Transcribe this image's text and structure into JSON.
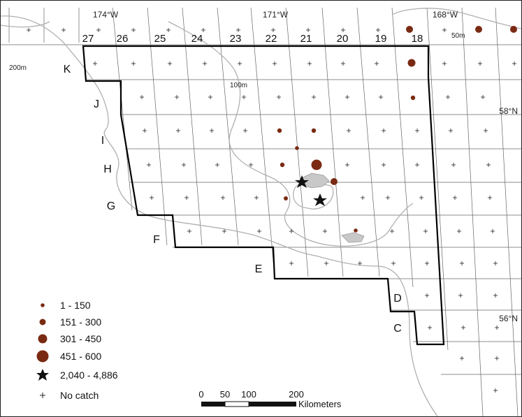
{
  "map": {
    "longitude_labels": [
      "174°W",
      "171°W",
      "168°W"
    ],
    "latitude_labels": [
      "58°N",
      "56°N"
    ],
    "depth_labels": [
      "200m",
      "100m",
      "50m"
    ],
    "column_labels": [
      "27",
      "26",
      "25",
      "24",
      "23",
      "22",
      "21",
      "20",
      "19",
      "18"
    ],
    "row_labels": [
      "K",
      "J",
      "I",
      "H",
      "G",
      "F",
      "E",
      "D",
      "C"
    ]
  },
  "legend": {
    "items": [
      {
        "symbol": "circle-xs",
        "label": "1 - 150"
      },
      {
        "symbol": "circle-s",
        "label": "151 - 300"
      },
      {
        "symbol": "circle-m",
        "label": "301 - 450"
      },
      {
        "symbol": "circle-l",
        "label": "451 - 600"
      },
      {
        "symbol": "star",
        "label": "2,040 - 4,886"
      },
      {
        "symbol": "plus",
        "label": "No catch"
      }
    ]
  },
  "scale_bar": {
    "tick_labels": [
      "0",
      "50",
      "100",
      "200"
    ],
    "unit": "Kilometers"
  },
  "colors": {
    "catch_fill": "#7a2a12",
    "star_fill": "#111111",
    "grid_line": "#555555",
    "survey_boundary": "#000000",
    "depth_contour": "#b0b0b0",
    "island_fill": "#c8c8c8"
  }
}
